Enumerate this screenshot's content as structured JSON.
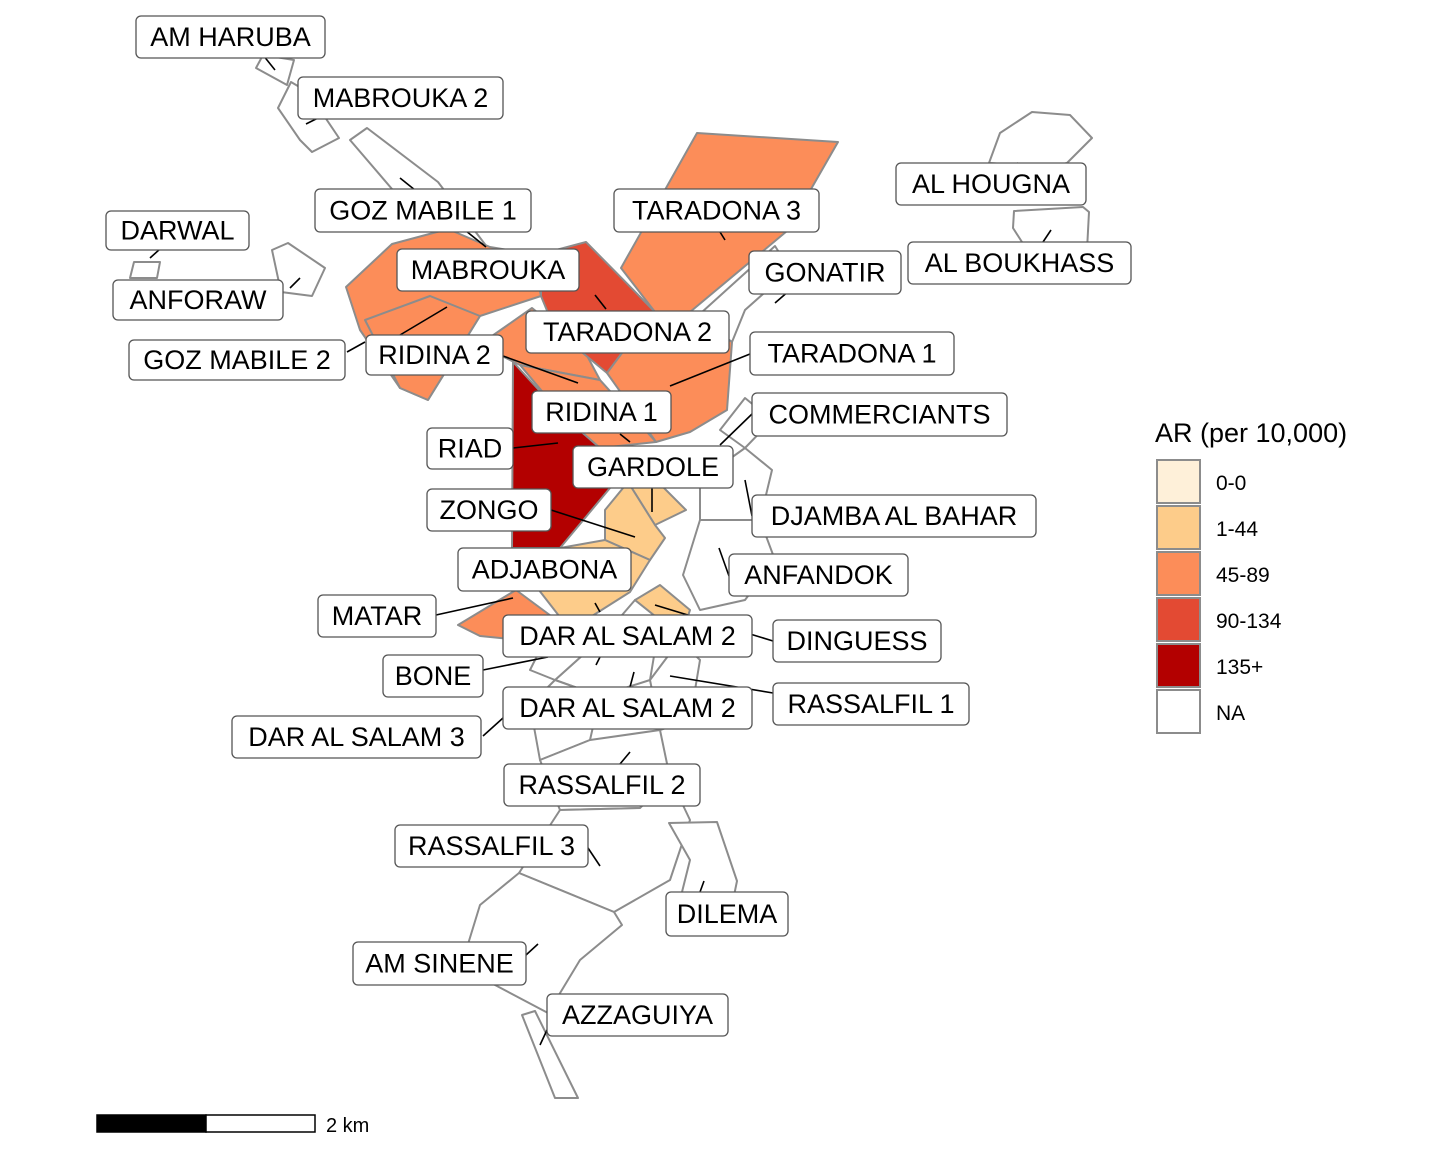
{
  "legend": {
    "title": "AR (per 10,000)",
    "classes": [
      {
        "key": "c0",
        "label": "0-0",
        "color": "#fef0d9"
      },
      {
        "key": "c1",
        "label": "1-44",
        "color": "#fdcc8a"
      },
      {
        "key": "c2",
        "label": "45-89",
        "color": "#fc8d59"
      },
      {
        "key": "c3",
        "label": "90-134",
        "color": "#e34a33"
      },
      {
        "key": "c4",
        "label": "135+",
        "color": "#b30000"
      },
      {
        "key": "na",
        "label": "NA",
        "color": "#ffffff"
      }
    ]
  },
  "scale_bar": {
    "label": "2 km"
  },
  "districts": [
    {
      "name": "AM HARUBA",
      "class": "na"
    },
    {
      "name": "MABROUKA 2",
      "class": "na"
    },
    {
      "name": "GOZ MABILE 1",
      "class": "na"
    },
    {
      "name": "DARWAL",
      "class": "na"
    },
    {
      "name": "ANFORAW",
      "class": "na"
    },
    {
      "name": "MABROUKA",
      "class": "c2"
    },
    {
      "name": "GOZ MABILE 2",
      "class": "c2"
    },
    {
      "name": "RIDINA 2",
      "class": "c2"
    },
    {
      "name": "TARADONA 3",
      "class": "c2"
    },
    {
      "name": "TARADONA 2",
      "class": "c3"
    },
    {
      "name": "GONATIR",
      "class": "na"
    },
    {
      "name": "AL HOUGNA",
      "class": "na"
    },
    {
      "name": "AL BOUKHASS",
      "class": "na"
    },
    {
      "name": "TARADONA 1",
      "class": "c2"
    },
    {
      "name": "RIDINA 1",
      "class": "c2"
    },
    {
      "name": "COMMERCIANTS",
      "class": "na"
    },
    {
      "name": "RIAD",
      "class": "c4"
    },
    {
      "name": "GARDOLE",
      "class": "c1"
    },
    {
      "name": "ZONGO",
      "class": "c1"
    },
    {
      "name": "DJAMBA AL BAHAR",
      "class": "na"
    },
    {
      "name": "ADJABONA",
      "class": "c1"
    },
    {
      "name": "ANFANDOK",
      "class": "na"
    },
    {
      "name": "MATAR",
      "class": "c2"
    },
    {
      "name": "DAR AL SALAM 2",
      "class": "na"
    },
    {
      "name": "DINGUESS",
      "class": "c1"
    },
    {
      "name": "BONE",
      "class": "na"
    },
    {
      "name": "RASSALFIL 1",
      "class": "na"
    },
    {
      "name": "DAR AL SALAM 3",
      "class": "na"
    },
    {
      "name": "RASSALFIL 2",
      "class": "na"
    },
    {
      "name": "RASSALFIL 3",
      "class": "na"
    },
    {
      "name": "DILEMA",
      "class": "na"
    },
    {
      "name": "AM SINENE",
      "class": "na"
    },
    {
      "name": "AZZAGUIYA",
      "class": "na"
    }
  ],
  "labels": [
    {
      "text": "AM HARUBA"
    },
    {
      "text": "MABROUKA 2"
    },
    {
      "text": "GOZ MABILE 1"
    },
    {
      "text": "DARWAL"
    },
    {
      "text": "ANFORAW"
    },
    {
      "text": "MABROUKA"
    },
    {
      "text": "GOZ MABILE 2"
    },
    {
      "text": "RIDINA 2"
    },
    {
      "text": "TARADONA 3"
    },
    {
      "text": "TARADONA 2"
    },
    {
      "text": "GONATIR"
    },
    {
      "text": "AL HOUGNA"
    },
    {
      "text": "AL BOUKHASS"
    },
    {
      "text": "TARADONA 1"
    },
    {
      "text": "RIDINA 1"
    },
    {
      "text": "COMMERCIANTS"
    },
    {
      "text": "RIAD"
    },
    {
      "text": "GARDOLE"
    },
    {
      "text": "ZONGO"
    },
    {
      "text": "DJAMBA AL BAHAR"
    },
    {
      "text": "ADJABONA"
    },
    {
      "text": "ANFANDOK"
    },
    {
      "text": "MATAR"
    },
    {
      "text": "DAR AL SALAM 2"
    },
    {
      "text": "DINGUESS"
    },
    {
      "text": "BONE"
    },
    {
      "text": "RASSALFIL 1"
    },
    {
      "text": "DAR AL SALAM 3"
    },
    {
      "text": "DAR AL SALAM 2"
    },
    {
      "text": "RASSALFIL 2"
    },
    {
      "text": "RASSALFIL 3"
    },
    {
      "text": "DILEMA"
    },
    {
      "text": "AM SINENE"
    },
    {
      "text": "AZZAGUIYA"
    }
  ]
}
